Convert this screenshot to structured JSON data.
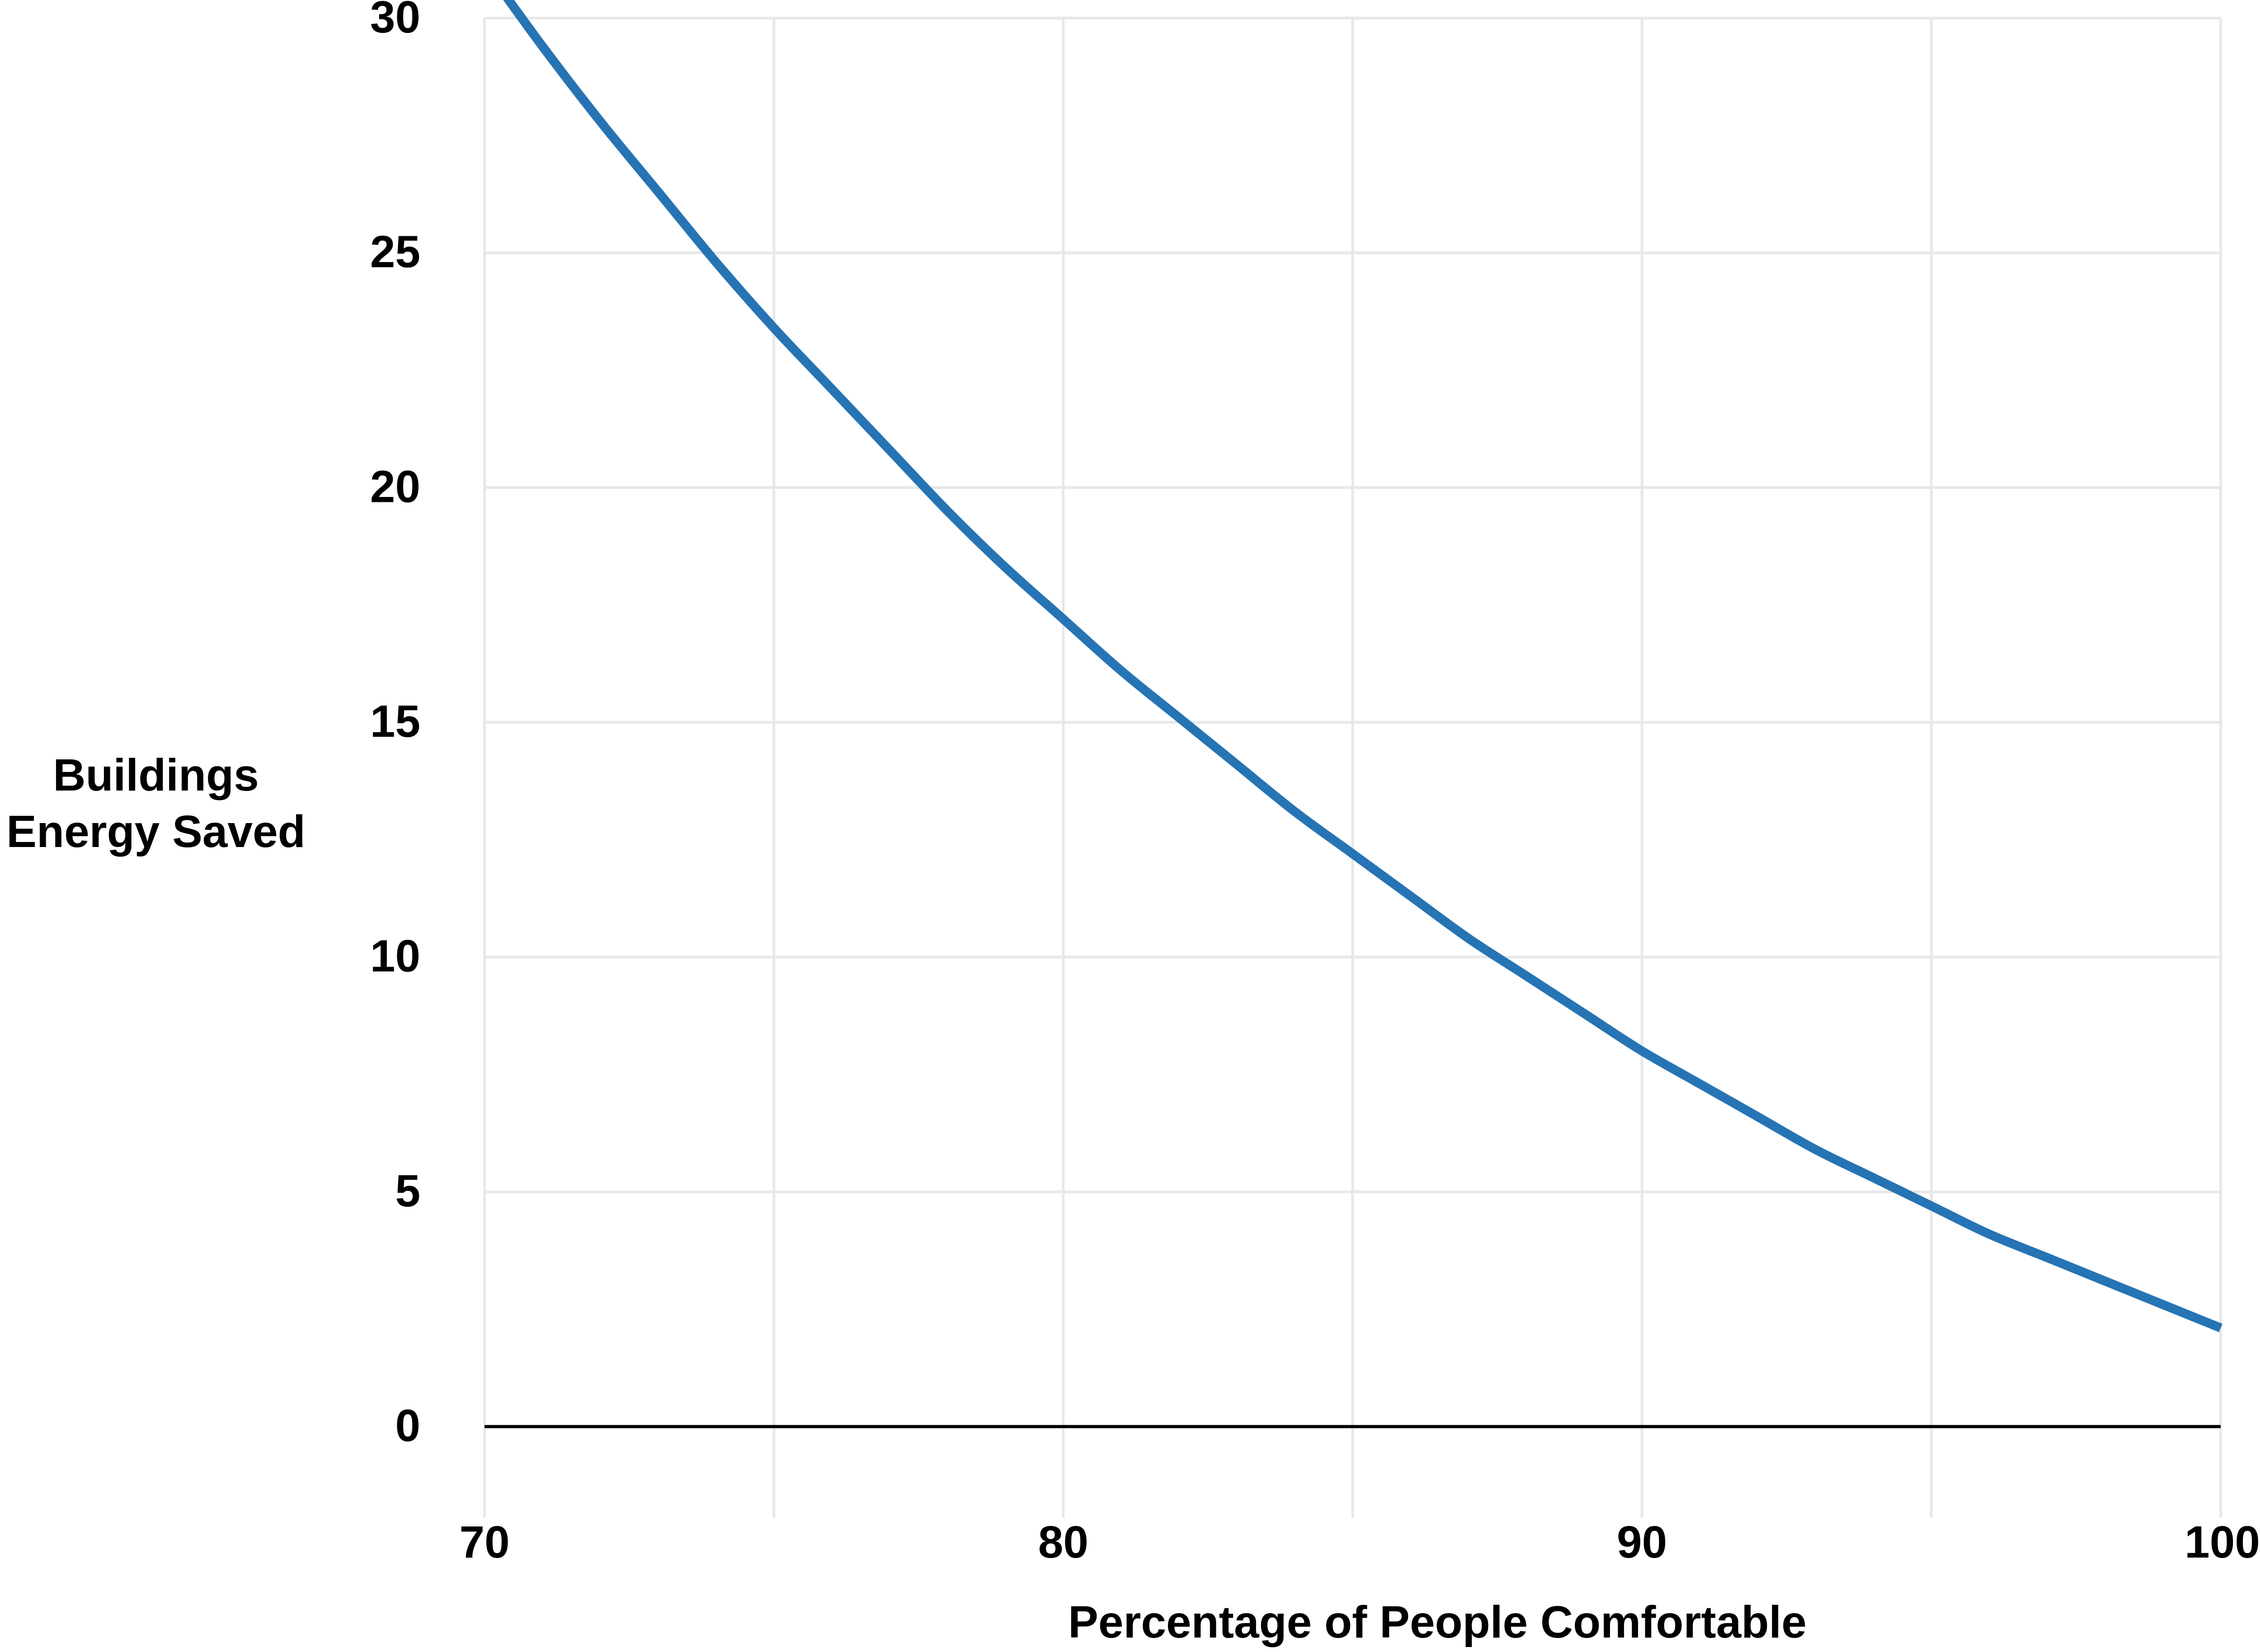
{
  "chart_data": {
    "type": "line",
    "title": "",
    "xlabel": "Percentage of People Comfortable",
    "ylabel_lines": [
      "Buildings",
      "Energy Saved"
    ],
    "xlim": [
      70,
      100
    ],
    "ylim": [
      0,
      30
    ],
    "x_ticks": [
      70,
      80,
      90,
      100
    ],
    "x_tick_labels": [
      "70",
      "80",
      "90",
      "100"
    ],
    "x_minor_gridlines": [
      75,
      85,
      95
    ],
    "y_ticks": [
      0,
      5,
      10,
      15,
      20,
      25,
      30
    ],
    "y_tick_labels": [
      "0",
      "5",
      "10",
      "15",
      "20",
      "25",
      "30"
    ],
    "grid": true,
    "series": [
      {
        "color": "#2674b4",
        "x": [
          70,
          71,
          72,
          73,
          74,
          75,
          76,
          77,
          78,
          79,
          80,
          81,
          82,
          83,
          84,
          85,
          86,
          87,
          88,
          89,
          90,
          91,
          92,
          93,
          94,
          95,
          96,
          97,
          98,
          99,
          100
        ],
        "values": [
          31.1,
          29.4,
          27.8,
          26.3,
          24.8,
          23.4,
          22.1,
          20.8,
          19.5,
          18.3,
          17.2,
          16.1,
          15.1,
          14.1,
          13.1,
          12.2,
          11.3,
          10.4,
          9.6,
          8.8,
          8.0,
          7.3,
          6.6,
          5.9,
          5.3,
          4.7,
          4.1,
          3.6,
          3.1,
          2.6,
          2.1
        ]
      }
    ]
  }
}
